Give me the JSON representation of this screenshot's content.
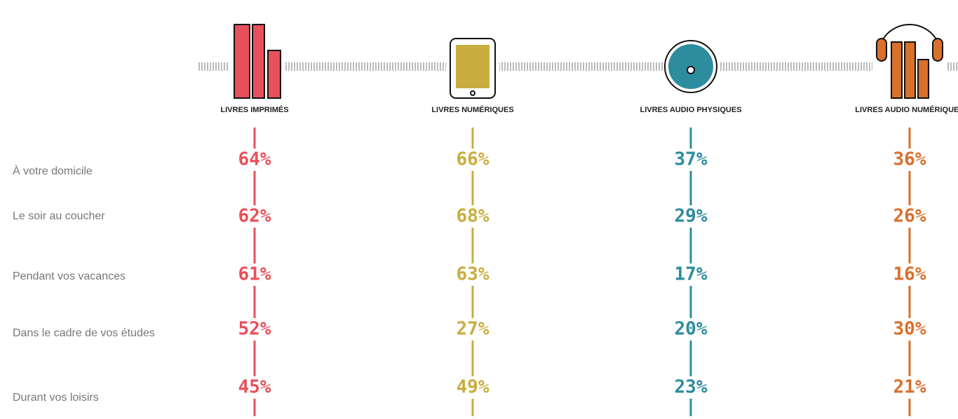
{
  "rows": [
    "À votre domicile",
    "Le soir au coucher",
    "Pendant vos vacances",
    "Dans le cadre de vos études",
    "Durant vos loisirs"
  ],
  "columns": [
    {
      "label": "LIVRES IMPRIMÉS",
      "color": "#e8505b",
      "values": [
        "64%",
        "62%",
        "61%",
        "52%",
        "45%"
      ]
    },
    {
      "label": "LIVRES NUMÉRIQUES",
      "color": "#c9ad3e",
      "values": [
        "66%",
        "68%",
        "63%",
        "27%",
        "49%"
      ]
    },
    {
      "label": "LIVRES AUDIO PHYSIQUES",
      "color": "#2d8c9e",
      "values": [
        "37%",
        "29%",
        "17%",
        "20%",
        "23%"
      ]
    },
    {
      "label": "LIVRES AUDIO NUMÉRIQUES",
      "color": "#d9702b",
      "values": [
        "36%",
        "26%",
        "16%",
        "30%",
        "21%"
      ]
    }
  ]
}
